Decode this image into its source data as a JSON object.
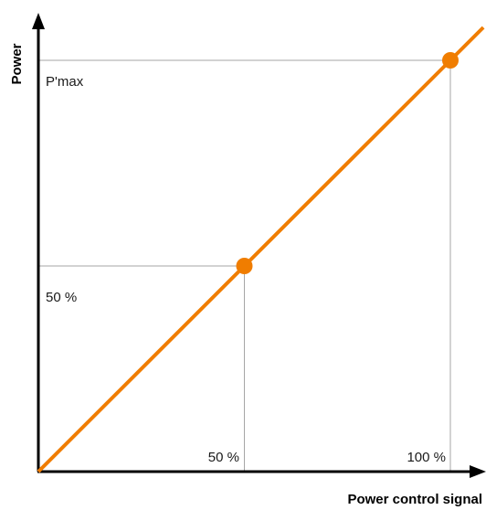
{
  "chart_data": {
    "type": "line",
    "xlabel": "Power control signal",
    "ylabel": "Power",
    "xlim": [
      0,
      100
    ],
    "ylim": [
      0,
      100
    ],
    "grid": false,
    "x_tick_labels": [
      "50 %",
      "100 %"
    ],
    "y_tick_labels": [
      "50 %",
      "P'max"
    ],
    "series": [
      {
        "color": "#f07d00",
        "x": [
          0,
          50,
          100
        ],
        "y": [
          0,
          50,
          100
        ],
        "markers": [
          {
            "x": 50,
            "y": 50
          },
          {
            "x": 100,
            "y": 100
          }
        ]
      }
    ],
    "guides": [
      {
        "x": 50,
        "y": 50
      },
      {
        "x": 100,
        "y": 100
      }
    ]
  },
  "colors": {
    "series": "#f07d00",
    "guide": "#a6a6a6",
    "axis": "#000000"
  }
}
